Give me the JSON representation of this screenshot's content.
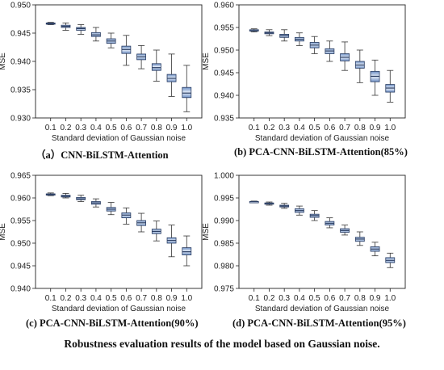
{
  "figure_caption": "Robustness evaluation results of the model based on Gaussian noise.",
  "colors": {
    "box_fill_edge": "#6d8fc4",
    "box_fill_center": "#e8eff9",
    "median": "#2b3e63",
    "axis": "#222222"
  },
  "chart_data": [
    {
      "type": "boxplot",
      "caption": "（a）CNN-BiLSTM-Attention",
      "xlabel": "Standard deviation of Gaussian noise",
      "ylabel": "MSE",
      "ylim": [
        0.93,
        0.95
      ],
      "yticks": [
        "0.930",
        "0.935",
        "0.940",
        "0.945",
        "0.950"
      ],
      "categories": [
        "0.1",
        "0.2",
        "0.3",
        "0.4",
        "0.5",
        "0.6",
        "0.7",
        "0.8",
        "0.9",
        "1.0"
      ],
      "boxes": [
        {
          "whislo": 0.9465,
          "q1": 0.9466,
          "med": 0.9467,
          "q3": 0.9468,
          "whishi": 0.9469
        },
        {
          "whislo": 0.9455,
          "q1": 0.946,
          "med": 0.9462,
          "q3": 0.9464,
          "whishi": 0.9468
        },
        {
          "whislo": 0.9448,
          "q1": 0.9455,
          "med": 0.9458,
          "q3": 0.946,
          "whishi": 0.9465
        },
        {
          "whislo": 0.9436,
          "q1": 0.9444,
          "med": 0.9447,
          "q3": 0.9451,
          "whishi": 0.946
        },
        {
          "whislo": 0.9424,
          "q1": 0.9432,
          "med": 0.9436,
          "q3": 0.944,
          "whishi": 0.945
        },
        {
          "whislo": 0.9393,
          "q1": 0.9414,
          "med": 0.9421,
          "q3": 0.9427,
          "whishi": 0.9446
        },
        {
          "whislo": 0.9387,
          "q1": 0.9403,
          "med": 0.9408,
          "q3": 0.9413,
          "whishi": 0.9428
        },
        {
          "whislo": 0.9365,
          "q1": 0.9384,
          "med": 0.9389,
          "q3": 0.9396,
          "whishi": 0.942
        },
        {
          "whislo": 0.9338,
          "q1": 0.9364,
          "med": 0.937,
          "q3": 0.9377,
          "whishi": 0.9413
        },
        {
          "whislo": 0.9311,
          "q1": 0.9336,
          "med": 0.9344,
          "q3": 0.9354,
          "whishi": 0.9393
        }
      ]
    },
    {
      "type": "boxplot",
      "caption": "(b) PCA-CNN-BiLSTM-Attention(85%)",
      "xlabel": "Standard deviation of Gaussian noise",
      "ylabel": "MSE",
      "ylim": [
        0.935,
        0.96
      ],
      "yticks": [
        "0.935",
        "0.940",
        "0.945",
        "0.950",
        "0.955",
        "0.960"
      ],
      "categories": [
        "0.1",
        "0.2",
        "0.3",
        "0.4",
        "0.5",
        "0.6",
        "0.7",
        "0.8",
        "0.9",
        "1.0"
      ],
      "boxes": [
        {
          "whislo": 0.954,
          "q1": 0.9542,
          "med": 0.9543,
          "q3": 0.9545,
          "whishi": 0.9547
        },
        {
          "whislo": 0.9532,
          "q1": 0.9536,
          "med": 0.9538,
          "q3": 0.954,
          "whishi": 0.9545
        },
        {
          "whislo": 0.952,
          "q1": 0.9528,
          "med": 0.9532,
          "q3": 0.9535,
          "whishi": 0.9545
        },
        {
          "whislo": 0.951,
          "q1": 0.952,
          "med": 0.9524,
          "q3": 0.9528,
          "whishi": 0.9538
        },
        {
          "whislo": 0.9492,
          "q1": 0.9505,
          "med": 0.9511,
          "q3": 0.9517,
          "whishi": 0.953
        },
        {
          "whislo": 0.9475,
          "q1": 0.9492,
          "med": 0.9498,
          "q3": 0.9503,
          "whishi": 0.952
        },
        {
          "whislo": 0.9455,
          "q1": 0.9476,
          "med": 0.9484,
          "q3": 0.9492,
          "whishi": 0.9518
        },
        {
          "whislo": 0.9428,
          "q1": 0.946,
          "med": 0.9467,
          "q3": 0.9475,
          "whishi": 0.95
        },
        {
          "whislo": 0.94,
          "q1": 0.943,
          "med": 0.9442,
          "q3": 0.9453,
          "whishi": 0.9478
        },
        {
          "whislo": 0.9385,
          "q1": 0.9407,
          "med": 0.9416,
          "q3": 0.9424,
          "whishi": 0.9455
        }
      ]
    },
    {
      "type": "boxplot",
      "caption": "(c) PCA-CNN-BiLSTM-Attention(90%)",
      "xlabel": "Standard deviation of Gaussian noise",
      "ylabel": "MSE",
      "ylim": [
        0.94,
        0.965
      ],
      "yticks": [
        "0.940",
        "0.945",
        "0.950",
        "0.955",
        "0.960",
        "0.965"
      ],
      "categories": [
        "0.1",
        "0.2",
        "0.3",
        "0.4",
        "0.5",
        "0.6",
        "0.7",
        "0.8",
        "0.9",
        "1.0"
      ],
      "boxes": [
        {
          "whislo": 0.9605,
          "q1": 0.9607,
          "med": 0.9608,
          "q3": 0.9609,
          "whishi": 0.9611
        },
        {
          "whislo": 0.96,
          "q1": 0.9602,
          "med": 0.9604,
          "q3": 0.9606,
          "whishi": 0.961
        },
        {
          "whislo": 0.9592,
          "q1": 0.9596,
          "med": 0.9598,
          "q3": 0.9601,
          "whishi": 0.9606
        },
        {
          "whislo": 0.958,
          "q1": 0.9586,
          "med": 0.9589,
          "q3": 0.9592,
          "whishi": 0.9598
        },
        {
          "whislo": 0.9563,
          "q1": 0.9571,
          "med": 0.9575,
          "q3": 0.9579,
          "whishi": 0.959
        },
        {
          "whislo": 0.9542,
          "q1": 0.9556,
          "med": 0.9562,
          "q3": 0.9567,
          "whishi": 0.9578
        },
        {
          "whislo": 0.9525,
          "q1": 0.9539,
          "med": 0.9545,
          "q3": 0.955,
          "whishi": 0.9566
        },
        {
          "whislo": 0.9505,
          "q1": 0.9521,
          "med": 0.9526,
          "q3": 0.9531,
          "whishi": 0.9549
        },
        {
          "whislo": 0.947,
          "q1": 0.95,
          "med": 0.9506,
          "q3": 0.9512,
          "whishi": 0.954
        },
        {
          "whislo": 0.945,
          "q1": 0.9474,
          "med": 0.9481,
          "q3": 0.949,
          "whishi": 0.9516
        }
      ]
    },
    {
      "type": "boxplot",
      "caption": "(d) PCA-CNN-BiLSTM-Attention(95%)",
      "xlabel": "Standard deviation of Gaussian noise",
      "ylabel": "MSE",
      "ylim": [
        0.975,
        1.0
      ],
      "yticks": [
        "0.975",
        "0.980",
        "0.985",
        "0.990",
        "0.995",
        "1.000"
      ],
      "categories": [
        "0.1",
        "0.2",
        "0.3",
        "0.4",
        "0.5",
        "0.6",
        "0.7",
        "0.8",
        "0.9",
        "1.0"
      ],
      "boxes": [
        {
          "whislo": 0.994,
          "q1": 0.9941,
          "med": 0.9942,
          "q3": 0.9942,
          "whishi": 0.9943
        },
        {
          "whislo": 0.9934,
          "q1": 0.9936,
          "med": 0.9938,
          "q3": 0.9939,
          "whishi": 0.9941
        },
        {
          "whislo": 0.9927,
          "q1": 0.993,
          "med": 0.9932,
          "q3": 0.9934,
          "whishi": 0.9938
        },
        {
          "whislo": 0.9912,
          "q1": 0.9918,
          "med": 0.9922,
          "q3": 0.9926,
          "whishi": 0.9932
        },
        {
          "whislo": 0.99,
          "q1": 0.9907,
          "med": 0.9911,
          "q3": 0.9914,
          "whishi": 0.9922
        },
        {
          "whislo": 0.9884,
          "q1": 0.989,
          "med": 0.9894,
          "q3": 0.9898,
          "whishi": 0.9906
        },
        {
          "whislo": 0.9868,
          "q1": 0.9874,
          "med": 0.9878,
          "q3": 0.9882,
          "whishi": 0.989
        },
        {
          "whislo": 0.9845,
          "q1": 0.9854,
          "med": 0.9859,
          "q3": 0.9863,
          "whishi": 0.9875
        },
        {
          "whislo": 0.9822,
          "q1": 0.9832,
          "med": 0.9837,
          "q3": 0.9842,
          "whishi": 0.9852
        },
        {
          "whislo": 0.9796,
          "q1": 0.9807,
          "med": 0.9812,
          "q3": 0.9818,
          "whishi": 0.9828
        }
      ]
    }
  ]
}
